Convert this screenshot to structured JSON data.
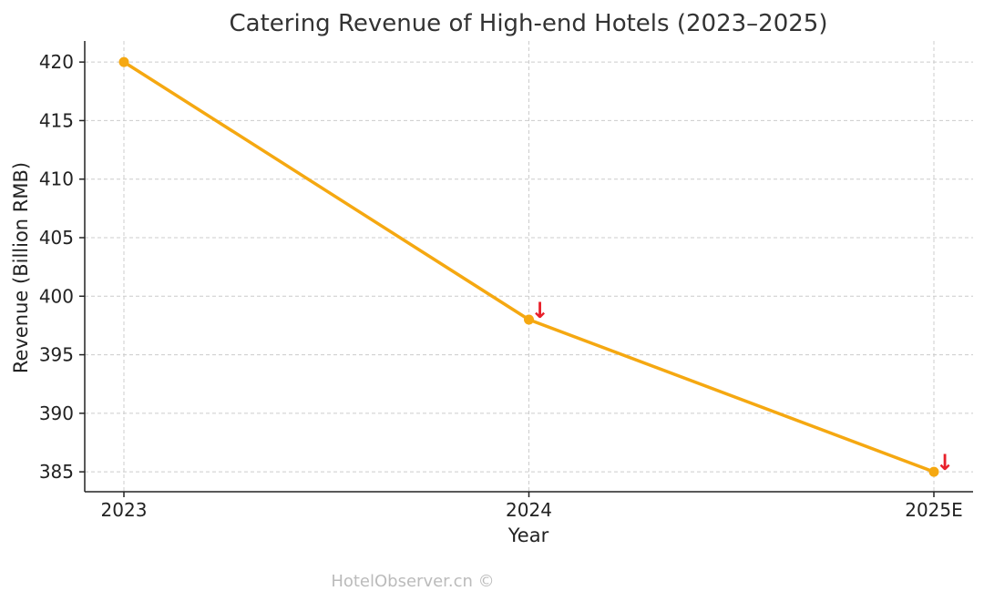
{
  "watermark": "HotelObserver.cn ©",
  "colors": {
    "series": "#F5A811",
    "annotation": "#E8202A",
    "grid": "#cccccc",
    "text": "#222222"
  },
  "chart_data": {
    "type": "line",
    "title": "Catering Revenue of High-end Hotels (2023–2025)",
    "xlabel": "Year",
    "ylabel": "Revenue (Billion RMB)",
    "categories": [
      "2023",
      "2024",
      "2025E"
    ],
    "series": [
      {
        "values": [
          420,
          398,
          385
        ],
        "color": "#F5A811",
        "marker": "circle"
      }
    ],
    "ylim": [
      383.3,
      421.8
    ],
    "yticks": [
      385,
      390,
      395,
      400,
      405,
      410,
      415,
      420
    ],
    "grid": true,
    "annotations": [
      {
        "category": "2024",
        "text": "↓",
        "color": "#E8202A"
      },
      {
        "category": "2025E",
        "text": "↓",
        "color": "#E8202A"
      }
    ]
  }
}
